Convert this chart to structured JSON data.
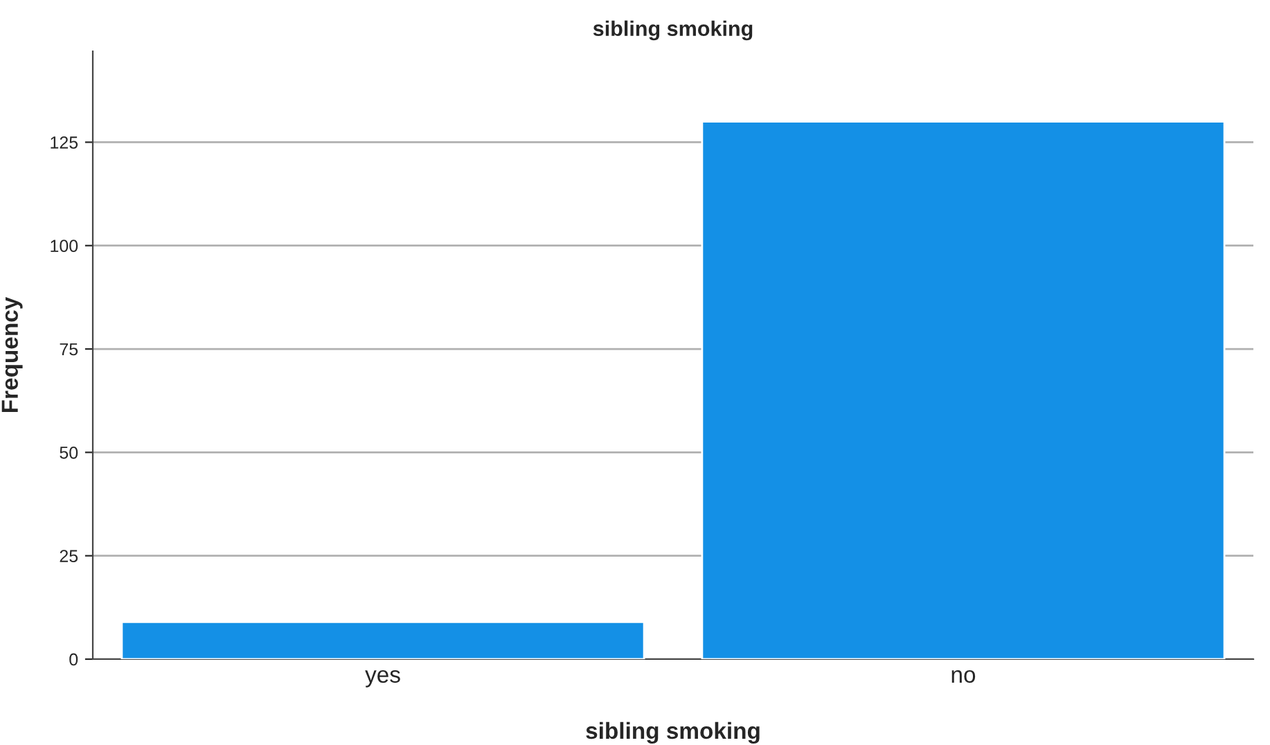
{
  "chart_data": {
    "type": "bar",
    "title": "sibling smoking",
    "xlabel": "sibling smoking",
    "ylabel": "Frequency",
    "categories": [
      "yes",
      "no"
    ],
    "values": [
      9,
      130
    ],
    "color": "#1490e6",
    "ylim": [
      0,
      147
    ],
    "yticks": [
      0,
      25,
      50,
      75,
      100,
      125
    ],
    "grid": "y",
    "legend": false
  }
}
